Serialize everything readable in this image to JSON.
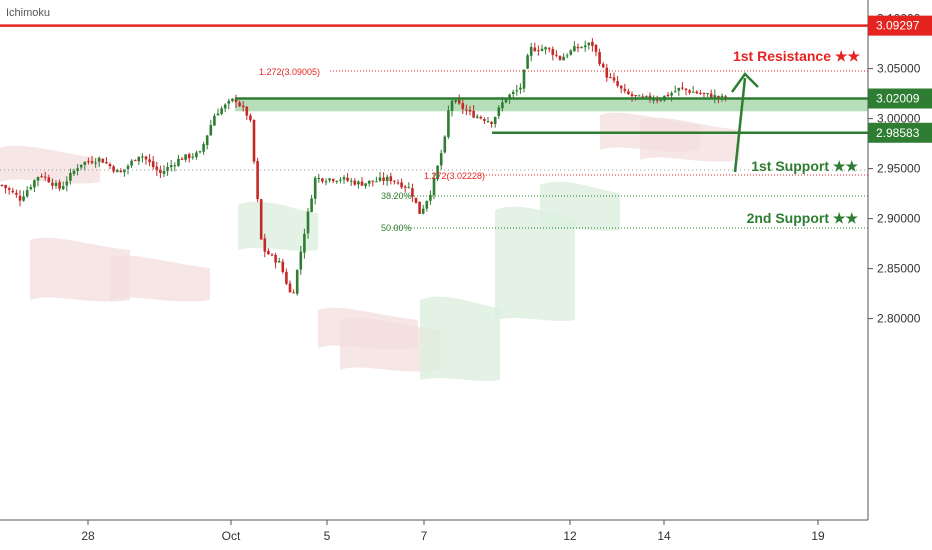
{
  "chart_data": {
    "type": "candlestick",
    "indicator_label": "Ichimoku",
    "y_range": [
      2.8,
      3.11
    ],
    "y_ticks": [
      "3.10000",
      "3.05000",
      "3.00000",
      "2.95000",
      "2.90000",
      "2.85000",
      "2.80000"
    ],
    "x_ticks": [
      "28",
      "Oct",
      "5",
      "7",
      "12",
      "14",
      "19"
    ],
    "levels": [
      {
        "label": "1st Resistance ★★",
        "value": "3.09297",
        "color": "#e52420"
      },
      {
        "label": "1st Support ★★",
        "value": "3.02009",
        "color": "#2e7d32"
      },
      {
        "label": "2nd Support ★★",
        "value": "2.98583",
        "color": "#2e7d32"
      }
    ],
    "fib_labels": [
      {
        "text": "1.272(3.09005)",
        "color": "#e52420"
      },
      {
        "text": "1.272(3.02228)",
        "color": "#e52420"
      },
      {
        "text": "38.20%",
        "color": "#2e7d32"
      },
      {
        "text": "50.00%",
        "color": "#2e7d32"
      }
    ],
    "candle_colors": {
      "up": "#2e7d32",
      "down": "#c62828"
    },
    "grid": false
  }
}
